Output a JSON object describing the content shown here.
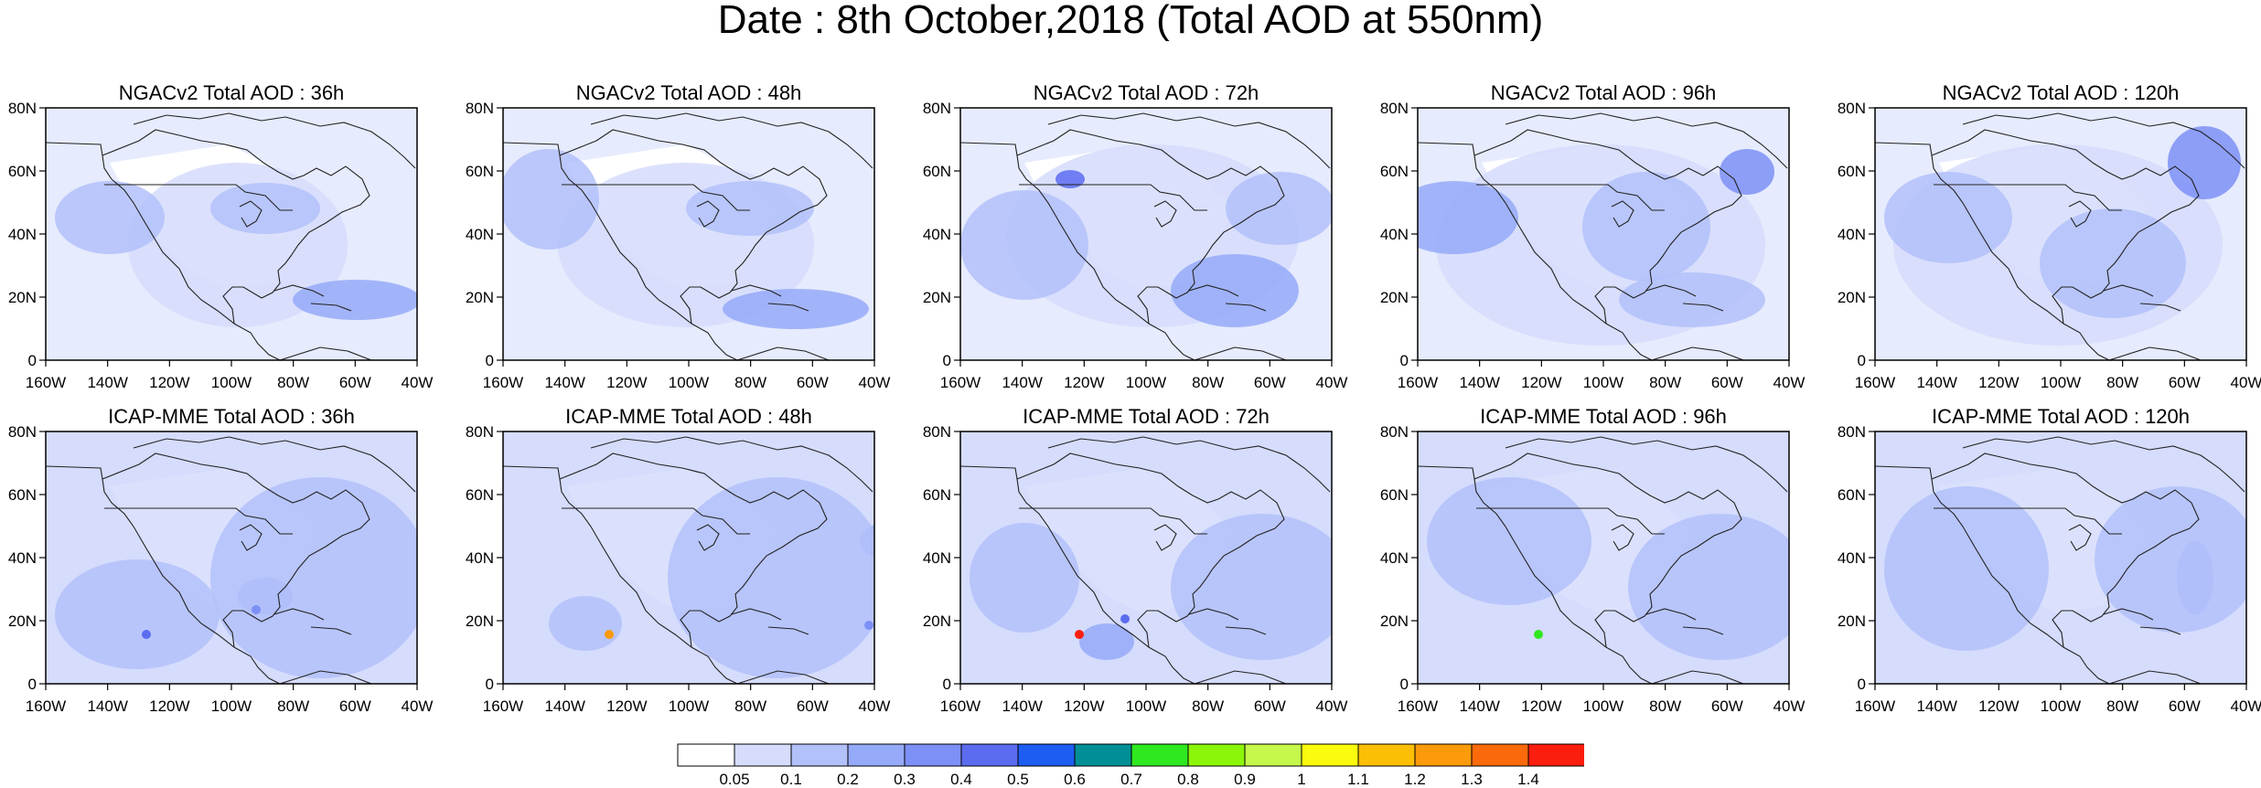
{
  "title": "Date : 8th October,2018 (Total AOD at 550nm)",
  "panels": [
    {
      "title": "NGACv2 Total AOD : 36h",
      "model": "NGACv2",
      "lead": "36h"
    },
    {
      "title": "NGACv2 Total AOD : 48h",
      "model": "NGACv2",
      "lead": "48h"
    },
    {
      "title": "NGACv2 Total AOD : 72h",
      "model": "NGACv2",
      "lead": "72h"
    },
    {
      "title": "NGACv2 Total AOD : 96h",
      "model": "NGACv2",
      "lead": "96h"
    },
    {
      "title": "NGACv2 Total AOD : 120h",
      "model": "NGACv2",
      "lead": "120h"
    },
    {
      "title": "ICAP-MME Total AOD : 36h",
      "model": "ICAP-MME",
      "lead": "36h"
    },
    {
      "title": "ICAP-MME Total AOD : 48h",
      "model": "ICAP-MME",
      "lead": "48h"
    },
    {
      "title": "ICAP-MME Total AOD : 72h",
      "model": "ICAP-MME",
      "lead": "72h"
    },
    {
      "title": "ICAP-MME Total AOD : 96h",
      "model": "ICAP-MME",
      "lead": "96h"
    },
    {
      "title": "ICAP-MME Total AOD : 120h",
      "model": "ICAP-MME",
      "lead": "120h"
    }
  ],
  "axes": {
    "lon_ticks": [
      "160W",
      "140W",
      "120W",
      "100W",
      "80W",
      "60W",
      "40W"
    ],
    "lat_ticks": [
      "80N",
      "60N",
      "40N",
      "20N",
      "0"
    ],
    "lon_range": [
      -160,
      -40
    ],
    "lat_range": [
      0,
      80
    ]
  },
  "colorbar": {
    "labels": [
      "0.05",
      "0.1",
      "0.2",
      "0.3",
      "0.4",
      "0.5",
      "0.6",
      "0.7",
      "0.8",
      "0.9",
      "1",
      "1.1",
      "1.2",
      "1.3",
      "1.4"
    ],
    "colors": [
      "#ffffff",
      "#d5dcfc",
      "#b3c1fa",
      "#95aaf8",
      "#7d90f6",
      "#5c6cf0",
      "#1e5df2",
      "#008f96",
      "#2fe820",
      "#8cf60a",
      "#c6f74b",
      "#fbfb0e",
      "#fbbf05",
      "#fb9a0a",
      "#fb6a0a",
      "#fb1e0e"
    ]
  }
}
